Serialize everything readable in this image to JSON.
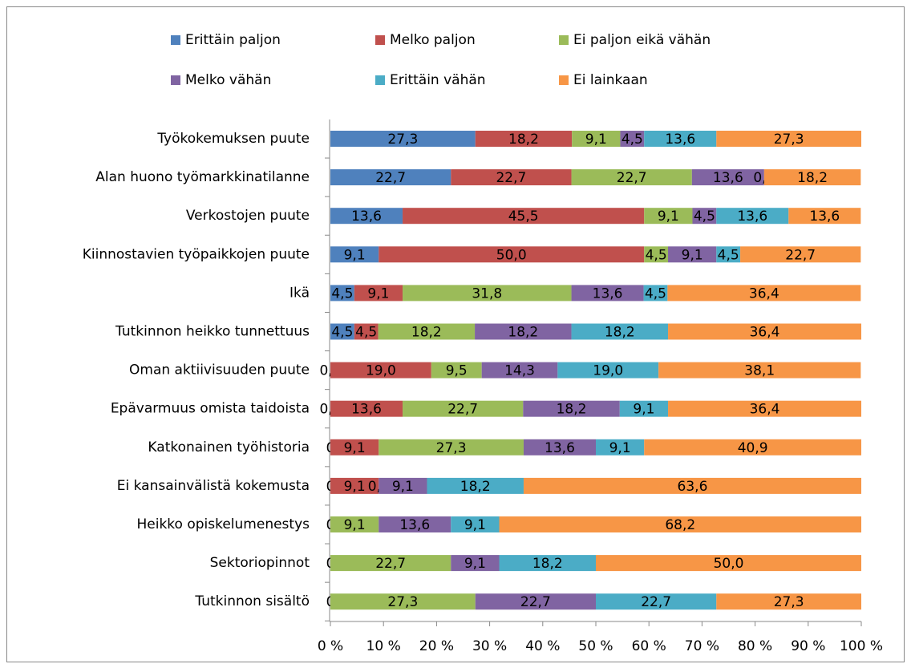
{
  "chart_data": {
    "type": "stacked_barh",
    "categories": [
      "Työkokemuksen puute",
      "Alan huono työmarkkinatilanne",
      "Verkostojen puute",
      "Kiinnostavien työpaikkojen puute",
      "Ikä",
      "Tutkinnon heikko tunnettuus",
      "Oman aktiivisuuden puute",
      "Epävarmuus omista taidoista",
      "Katkonainen työhistoria",
      "Ei kansainvälistä kokemusta",
      "Heikko opiskelumenestys",
      "Sektoriopinnot",
      "Tutkinnon sisältö"
    ],
    "series": [
      {
        "name": "Erittäin paljon",
        "color": "#4f81bd",
        "values": [
          27.3,
          22.7,
          13.6,
          9.1,
          4.5,
          4.5,
          0,
          0,
          0,
          0,
          0,
          0,
          0
        ],
        "value_labels": [
          "27,3",
          "22,7",
          "13,6",
          "9,1",
          "4,5",
          "4,5",
          "0,0",
          "0,0",
          "0",
          "0",
          "0",
          "0",
          "0"
        ]
      },
      {
        "name": "Melko paljon",
        "color": "#c0504d",
        "values": [
          18.2,
          22.7,
          45.5,
          50.0,
          9.1,
          4.5,
          19.0,
          13.6,
          9.1,
          9.1,
          null,
          null,
          null
        ],
        "value_labels": [
          "18,2",
          "22,7",
          "45,5",
          "50,0",
          "9,1",
          "4,5",
          "19,0",
          "13,6",
          "9,1",
          "9,1",
          null,
          null,
          null
        ]
      },
      {
        "name": "Ei paljon eikä vähän",
        "color": "#9bbb59",
        "values": [
          9.1,
          22.7,
          9.1,
          4.5,
          31.8,
          18.2,
          9.5,
          22.7,
          27.3,
          0,
          9.1,
          22.7,
          27.3
        ],
        "value_labels": [
          "9,1",
          "22,7",
          "9,1",
          "4,5",
          "31,8",
          "18,2",
          "9,5",
          "22,7",
          "27,3",
          "0,0",
          "9,1",
          "22,7",
          "27,3"
        ]
      },
      {
        "name": "Melko vähän",
        "color": "#8064a2",
        "values": [
          4.5,
          13.6,
          4.5,
          9.1,
          13.6,
          18.2,
          14.3,
          18.2,
          13.6,
          9.1,
          13.6,
          9.1,
          22.7
        ],
        "value_labels": [
          "4,5",
          "13,6",
          "4,5",
          "9,1",
          "13,6",
          "18,2",
          "14,3",
          "18,2",
          "13,6",
          "9,1",
          "13,6",
          "9,1",
          "22,7"
        ]
      },
      {
        "name": "Erittäin vähän",
        "color": "#4bacc6",
        "values": [
          13.6,
          0,
          13.6,
          4.5,
          4.5,
          18.2,
          19.0,
          9.1,
          9.1,
          18.2,
          9.1,
          18.2,
          22.7
        ],
        "value_labels": [
          "13,6",
          "0,0",
          "13,6",
          "4,5",
          "4,5",
          "18,2",
          "19,0",
          "9,1",
          "9,1",
          "18,2",
          "9,1",
          "18,2",
          "22,7"
        ]
      },
      {
        "name": "Ei lainkaan",
        "color": "#f79646",
        "values": [
          27.3,
          18.2,
          13.6,
          22.7,
          36.4,
          36.4,
          38.1,
          36.4,
          40.9,
          63.6,
          68.2,
          50.0,
          27.3
        ],
        "value_labels": [
          "27,3",
          "18,2",
          "13,6",
          "22,7",
          "36,4",
          "36,4",
          "38,1",
          "36,4",
          "40,9",
          "63,6",
          "68,2",
          "50,0",
          "27,3"
        ]
      }
    ],
    "xlim": [
      0,
      100
    ],
    "xticks": [
      {
        "value": 0,
        "label": "0 %"
      },
      {
        "value": 10,
        "label": "10 %"
      },
      {
        "value": 20,
        "label": "20 %"
      },
      {
        "value": 30,
        "label": "30 %"
      },
      {
        "value": 40,
        "label": "40 %"
      },
      {
        "value": 50,
        "label": "50 %"
      },
      {
        "value": 60,
        "label": "60 %"
      },
      {
        "value": 70,
        "label": "70 %"
      },
      {
        "value": 80,
        "label": "80 %"
      },
      {
        "value": 90,
        "label": "90 %"
      },
      {
        "value": 100,
        "label": "100 %"
      }
    ],
    "legend": "top"
  }
}
